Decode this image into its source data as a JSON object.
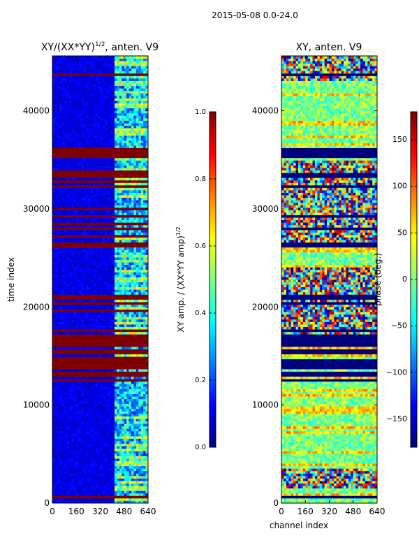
{
  "figure": {
    "suptitle": "2015-05-08 0.0-24.0"
  },
  "colors": {
    "jet_stops": [
      "#00007f",
      "#0000ff",
      "#007fff",
      "#00ffff",
      "#7fff7f",
      "#ffff00",
      "#ff7f00",
      "#ff0000",
      "#7f0000"
    ]
  },
  "chart_data": [
    {
      "type": "heatmap",
      "name": "amplitude",
      "title_base": "XY/(XX*YY)",
      "title_sup": "1/2",
      "title_suffix": ", anten. V9",
      "xlabel": "",
      "ylabel": "time index",
      "xlim": [
        0,
        640
      ],
      "ylim": [
        0,
        45600
      ],
      "xticks": [
        0,
        160,
        320,
        480,
        640
      ],
      "xtick_labels": [
        "0",
        "160",
        "320",
        "480",
        "640"
      ],
      "yticks": [
        0,
        10000,
        20000,
        30000,
        40000
      ],
      "ytick_labels": [
        "0",
        "10000",
        "20000",
        "30000",
        "40000"
      ],
      "colorbar": {
        "label": "XY amp. / (XX*YY amp)",
        "label_sup": "1/2",
        "range": [
          0,
          1
        ],
        "ticks": [
          0,
          0.2,
          0.4,
          0.6,
          0.8,
          1
        ],
        "tick_labels": [
          "0.0",
          "0.2",
          "0.4",
          "0.6",
          "0.8",
          "1.0"
        ]
      },
      "background_value": 0.1,
      "bright_channel_range": [
        410,
        640
      ],
      "flagged_value": 1.0,
      "flagged_time_bands": [
        [
          600,
          700
        ],
        [
          9300,
          9350
        ],
        [
          12100,
          12200
        ],
        [
          12500,
          12600
        ],
        [
          13000,
          13400
        ],
        [
          13800,
          14600
        ],
        [
          14700,
          15000
        ],
        [
          15300,
          15600
        ],
        [
          16000,
          17200
        ],
        [
          17500,
          17800
        ],
        [
          18500,
          18600
        ],
        [
          19200,
          19300
        ],
        [
          19600,
          19800
        ],
        [
          20200,
          20500
        ],
        [
          20800,
          21400
        ],
        [
          26200,
          26700
        ],
        [
          27200,
          27300
        ],
        [
          27900,
          28000
        ],
        [
          28400,
          28600
        ],
        [
          29200,
          29300
        ],
        [
          30000,
          30200
        ],
        [
          31300,
          31500
        ],
        [
          32200,
          32500
        ],
        [
          32700,
          33000
        ],
        [
          33300,
          33600
        ],
        [
          33800,
          34000
        ],
        [
          34600,
          34700
        ],
        [
          35200,
          35600
        ],
        [
          35600,
          36300
        ],
        [
          36900,
          37000
        ],
        [
          38500,
          38600
        ],
        [
          43700,
          43900
        ]
      ]
    },
    {
      "type": "heatmap",
      "name": "phase",
      "title": "XY, anten. V9",
      "xlabel": "channel index",
      "ylabel": "",
      "xlim": [
        0,
        640
      ],
      "ylim": [
        0,
        45600
      ],
      "xticks": [
        0,
        160,
        320,
        480,
        640
      ],
      "xtick_labels": [
        "0",
        "160",
        "320",
        "480",
        "640"
      ],
      "yticks": [
        0,
        10000,
        20000,
        30000,
        40000
      ],
      "ytick_labels": [
        "0",
        "10000",
        "20000",
        "30000",
        "40000"
      ],
      "colorbar": {
        "label": "phase (deg.)",
        "range": [
          -180,
          180
        ],
        "ticks": [
          -150,
          -100,
          -50,
          0,
          50,
          100,
          150
        ],
        "tick_labels": [
          "−150",
          "−100",
          "−50",
          "0",
          "50",
          "100",
          "150"
        ]
      },
      "background_value": 0,
      "flagged_value": -180,
      "flagged_time_bands": [
        [
          600,
          700
        ],
        [
          9300,
          9350
        ],
        [
          12100,
          12200
        ],
        [
          12500,
          12600
        ],
        [
          13000,
          13400
        ],
        [
          13800,
          14600
        ],
        [
          15300,
          15600
        ],
        [
          16000,
          17200
        ],
        [
          17500,
          17800
        ],
        [
          20200,
          20500
        ],
        [
          20800,
          21400
        ],
        [
          26200,
          26700
        ],
        [
          27900,
          28000
        ],
        [
          29200,
          29300
        ],
        [
          32200,
          32500
        ],
        [
          33300,
          33600
        ],
        [
          35200,
          36300
        ],
        [
          36900,
          37000
        ],
        [
          38500,
          38600
        ],
        [
          43700,
          43900
        ]
      ],
      "noisy_time_bands": [
        [
          1500,
          3500
        ],
        [
          16000,
          24000
        ],
        [
          26000,
          35000
        ],
        [
          43000,
          45600
        ]
      ]
    }
  ]
}
